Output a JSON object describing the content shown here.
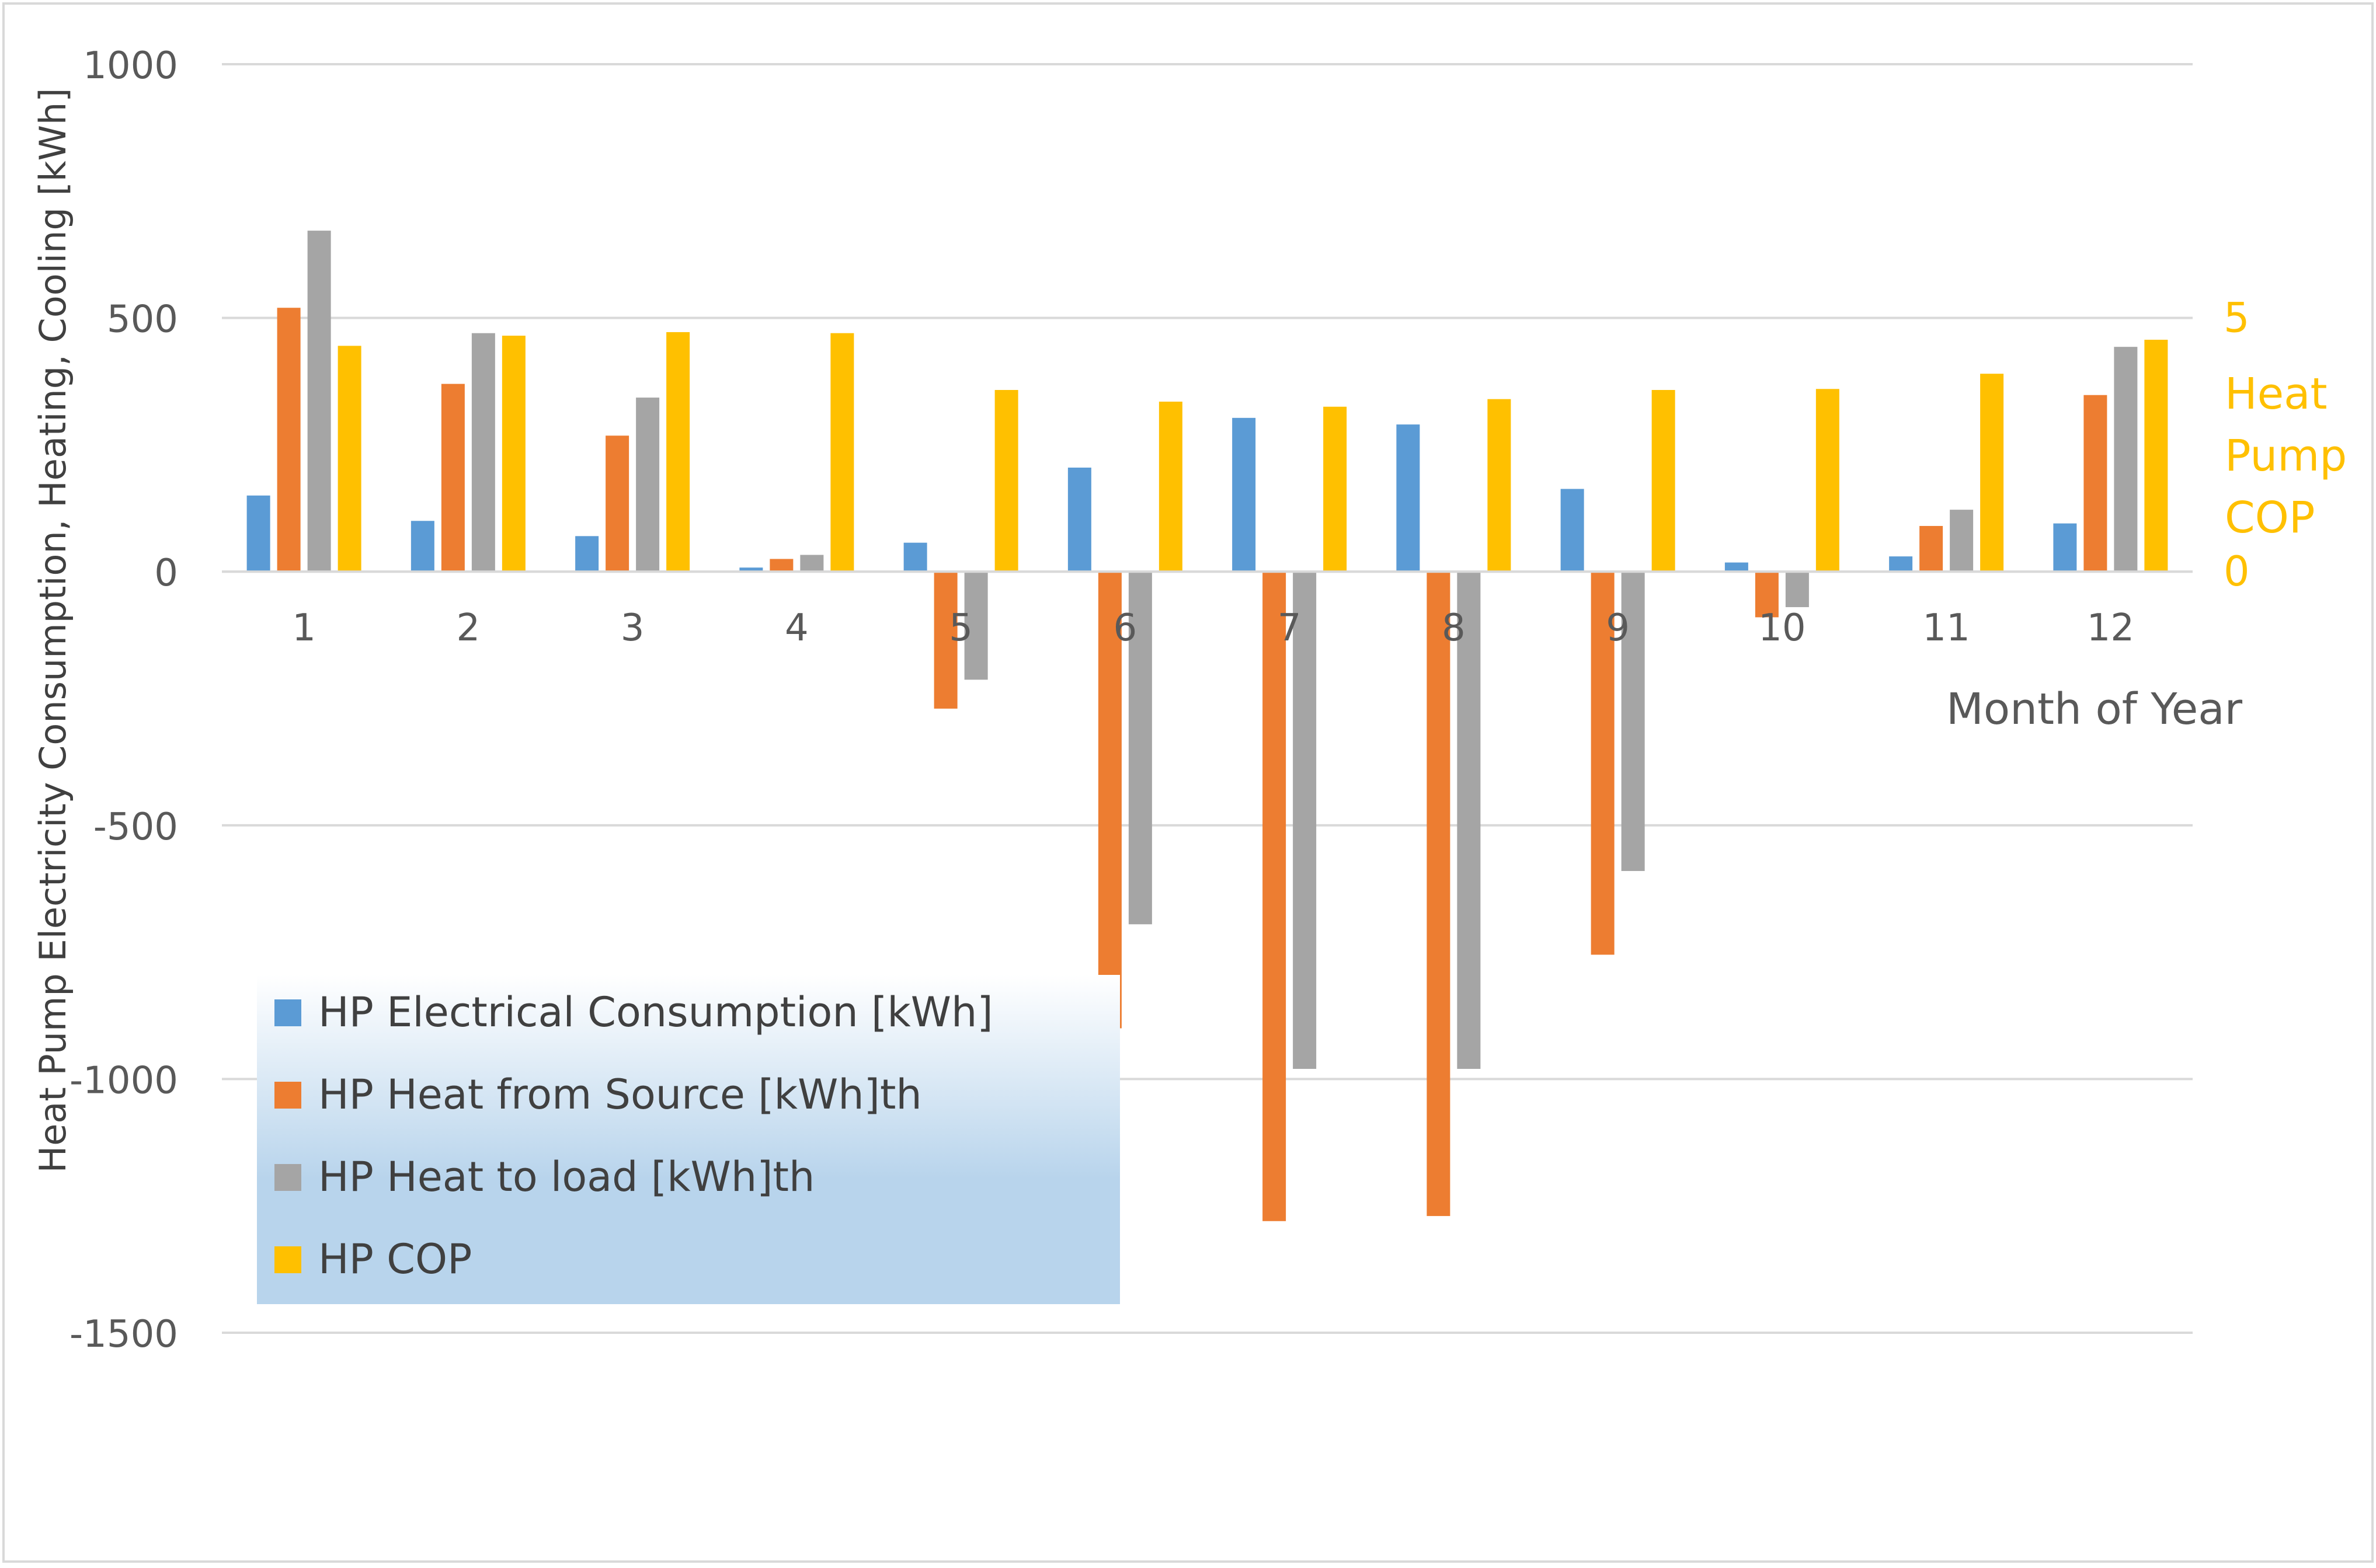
{
  "chart_data": {
    "type": "bar",
    "title": "",
    "xlabel": "Month of Year",
    "ylabel": "Heat Pump Electricity Consumption, Heating, Cooling [kWh]",
    "y2label": [
      "Heat",
      "Pump",
      "COP"
    ],
    "ylim": [
      -1500,
      1000
    ],
    "y_ticks": [
      1000,
      500,
      0,
      -500,
      -1000,
      -1500
    ],
    "y_tick_labels": [
      "1000",
      "500",
      "0",
      "-500",
      "-1000",
      "-1500"
    ],
    "y2lim": [
      0,
      5
    ],
    "y2_ticks": [
      5,
      0
    ],
    "y2_tick_labels": [
      "5",
      "0"
    ],
    "grid": true,
    "legend_position": "lower-left",
    "categories": [
      "1",
      "2",
      "3",
      "4",
      "5",
      "6",
      "7",
      "8",
      "9",
      "10",
      "11",
      "12"
    ],
    "series": [
      {
        "name": "HP Electrical Consumption [kWh]",
        "color": "#5B9BD5",
        "axis": "left",
        "values": [
          150,
          100,
          70,
          8,
          57,
          205,
          303,
          290,
          163,
          18,
          30,
          95
        ]
      },
      {
        "name": "HP Heat from Source [kWh]th",
        "color": "#ED7D31",
        "axis": "left",
        "values": [
          520,
          370,
          268,
          25,
          -270,
          -900,
          -1280,
          -1270,
          -755,
          -90,
          90,
          348
        ]
      },
      {
        "name": "HP Heat to load [kWh]th",
        "color": "#A5A5A5",
        "axis": "left",
        "values": [
          672,
          470,
          343,
          33,
          -213,
          -695,
          -980,
          -980,
          -590,
          -70,
          122,
          443
        ]
      },
      {
        "name": "HP COP",
        "color": "#FFC000",
        "axis": "right",
        "values": [
          4.45,
          4.65,
          4.72,
          4.7,
          3.58,
          3.35,
          3.25,
          3.4,
          3.58,
          3.6,
          3.9,
          4.57
        ]
      }
    ]
  }
}
